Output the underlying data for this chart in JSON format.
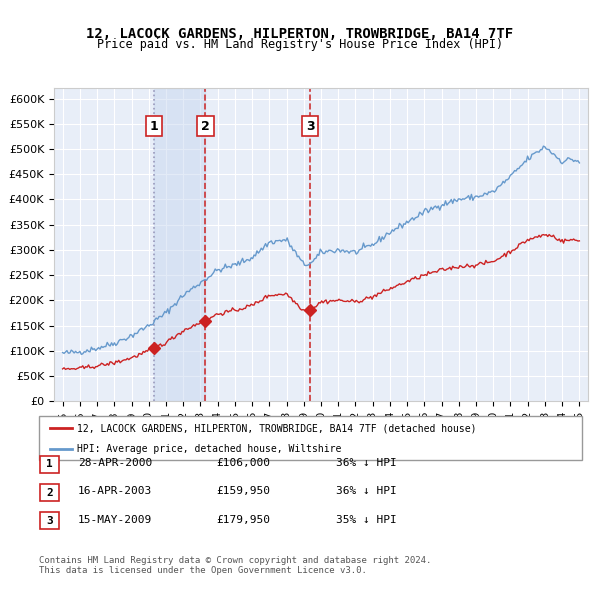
{
  "title1": "12, LACOCK GARDENS, HILPERTON, TROWBRIDGE, BA14 7TF",
  "title2": "Price paid vs. HM Land Registry's House Price Index (HPI)",
  "ylabel": "",
  "background_color": "#ffffff",
  "plot_bg_color": "#e8eef8",
  "grid_color": "#ffffff",
  "hpi_color": "#6699cc",
  "price_color": "#cc2222",
  "marker_color": "#cc2222",
  "vline_color_dashed": "#cc3333",
  "vline_color_dotted": "#aaaacc",
  "sale_dates": [
    2000.32,
    2003.29,
    2009.37
  ],
  "sale_prices": [
    106000,
    159950,
    179950
  ],
  "sale_labels": [
    "1",
    "2",
    "3"
  ],
  "legend_label_red": "12, LACOCK GARDENS, HILPERTON, TROWBRIDGE, BA14 7TF (detached house)",
  "legend_label_blue": "HPI: Average price, detached house, Wiltshire",
  "table_rows": [
    [
      "1",
      "28-APR-2000",
      "£106,000",
      "36% ↓ HPI"
    ],
    [
      "2",
      "16-APR-2003",
      "£159,950",
      "36% ↓ HPI"
    ],
    [
      "3",
      "15-MAY-2009",
      "£179,950",
      "35% ↓ HPI"
    ]
  ],
  "footnote": "Contains HM Land Registry data © Crown copyright and database right 2024.\nThis data is licensed under the Open Government Licence v3.0.",
  "xmin": 1994.5,
  "xmax": 2025.5,
  "ymin": 0,
  "ymax": 620000
}
